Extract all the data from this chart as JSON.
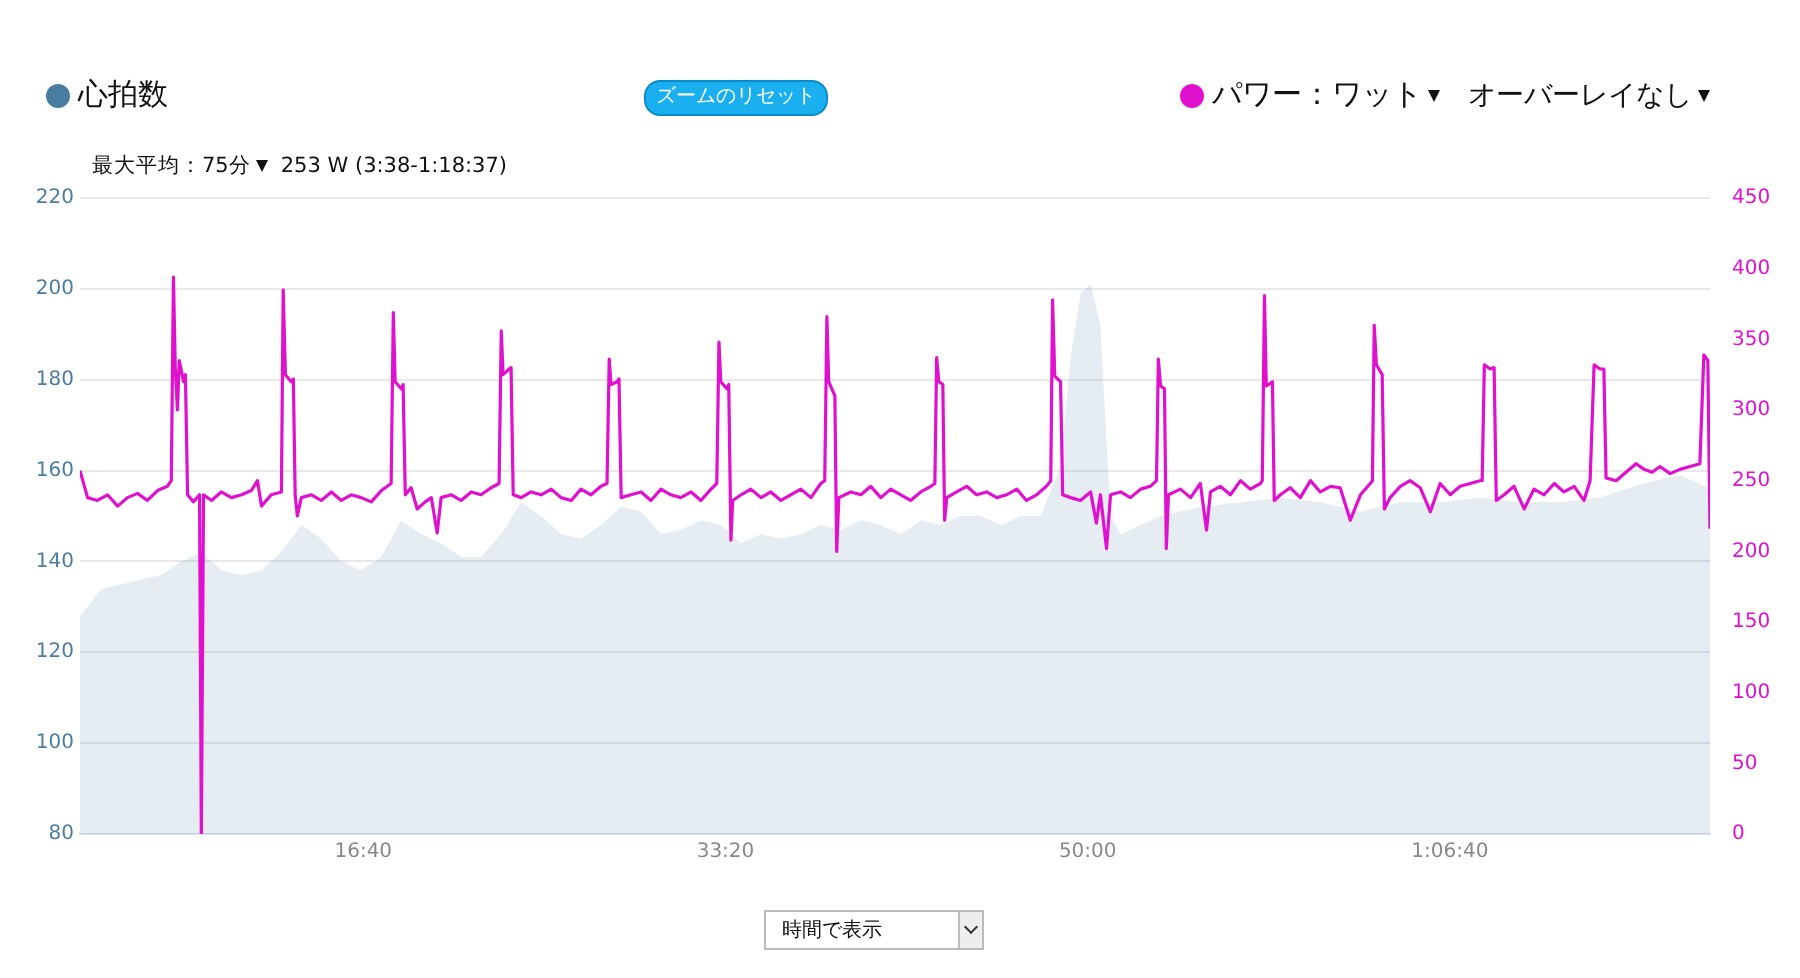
{
  "chart_data": {
    "type": "area",
    "legend": "top",
    "grid": "y",
    "marker": "none",
    "line_style": "solid",
    "annotations": [
      "ズームのリセット",
      "最大平均：75分",
      "253 W (3:38-1:18:37)",
      "オーバーレイなし",
      "時間で表示"
    ],
    "xlim": [
      218,
      4718
    ],
    "xticks": [
      {
        "value": 1000,
        "label": "16:40"
      },
      {
        "value": 2000,
        "label": "33:20"
      },
      {
        "value": 3000,
        "label": "50:00"
      },
      {
        "value": 4000,
        "label": "1:06:40"
      }
    ],
    "ylim": [
      80,
      220
    ],
    "yticks": [
      80,
      100,
      120,
      140,
      160,
      180,
      200,
      220
    ],
    "y2lim": [
      0,
      450
    ],
    "y2ticks": [
      0,
      50,
      100,
      150,
      200,
      250,
      300,
      350,
      400,
      450
    ],
    "series": [
      {
        "name": "心拍数",
        "type": "area",
        "color": "#4a7ba0",
        "x": [
          218,
          277,
          333,
          388,
          443,
          498,
          553,
          608,
          664,
          719,
          774,
          829,
          884,
          939,
          994,
          1050,
          1105,
          1160,
          1215,
          1270,
          1325,
          1381,
          1436,
          1491,
          1546,
          1601,
          1656,
          1712,
          1767,
          1822,
          1877,
          1932,
          1987,
          2043,
          2098,
          2153,
          2208,
          2263,
          2318,
          2374,
          2429,
          2484,
          2539,
          2594,
          2649,
          2704,
          2760,
          2815,
          2870,
          2925,
          2953,
          2980,
          3008,
          3035,
          3063,
          3091,
          3146,
          3201,
          3311,
          3422,
          3532,
          3642,
          3753,
          3863,
          3973,
          4084,
          4194,
          4304,
          4414,
          4525,
          4635,
          4718
        ],
        "values": [
          128,
          134,
          135,
          136,
          137,
          140,
          142,
          138,
          137,
          138,
          142,
          148,
          145,
          140,
          138,
          141,
          149,
          146,
          144,
          141,
          141,
          146,
          153,
          150,
          146,
          145,
          148,
          152,
          151,
          146,
          147,
          149,
          148,
          144,
          146,
          145,
          146,
          148,
          147,
          149,
          148,
          146,
          149,
          148,
          150,
          150,
          148,
          150,
          150,
          161,
          185,
          199,
          201,
          192,
          150,
          146,
          148,
          150,
          152,
          153,
          154,
          153,
          151,
          153,
          153,
          154,
          153,
          153,
          154,
          157,
          159,
          156
        ]
      },
      {
        "name": "パワー：ワット",
        "type": "line",
        "axis": "y2",
        "color": "#e010cf",
        "x": [
          218,
          239,
          266,
          294,
          322,
          349,
          377,
          404,
          432,
          459,
          470,
          476,
          481,
          487,
          492,
          504,
          509,
          515,
          531,
          548,
          553,
          559,
          581,
          608,
          636,
          664,
          691,
          708,
          719,
          746,
          774,
          779,
          785,
          801,
          807,
          812,
          818,
          829,
          857,
          884,
          912,
          939,
          967,
          994,
          1022,
          1050,
          1077,
          1083,
          1088,
          1105,
          1110,
          1116,
          1132,
          1149,
          1171,
          1188,
          1204,
          1215,
          1243,
          1270,
          1298,
          1325,
          1353,
          1375,
          1381,
          1386,
          1403,
          1408,
          1414,
          1436,
          1463,
          1491,
          1519,
          1546,
          1574,
          1601,
          1629,
          1656,
          1673,
          1679,
          1684,
          1701,
          1706,
          1712,
          1739,
          1767,
          1794,
          1822,
          1849,
          1877,
          1905,
          1932,
          1960,
          1976,
          1982,
          1987,
          2004,
          2009,
          2015,
          2020,
          2043,
          2070,
          2098,
          2125,
          2153,
          2180,
          2208,
          2236,
          2263,
          2274,
          2280,
          2285,
          2302,
          2307,
          2313,
          2346,
          2374,
          2401,
          2429,
          2456,
          2484,
          2511,
          2539,
          2567,
          2578,
          2583,
          2589,
          2600,
          2605,
          2611,
          2638,
          2666,
          2693,
          2721,
          2749,
          2776,
          2804,
          2831,
          2859,
          2886,
          2898,
          2903,
          2909,
          2925,
          2931,
          2953,
          2980,
          3008,
          3024,
          3035,
          3052,
          3063,
          3091,
          3118,
          3146,
          3173,
          3190,
          3195,
          3201,
          3212,
          3217,
          3223,
          3256,
          3284,
          3311,
          3328,
          3339,
          3366,
          3394,
          3422,
          3449,
          3477,
          3482,
          3488,
          3493,
          3510,
          3515,
          3532,
          3559,
          3587,
          3615,
          3642,
          3670,
          3697,
          3725,
          3753,
          3780,
          3786,
          3791,
          3797,
          3813,
          3819,
          3835,
          3863,
          3890,
          3918,
          3946,
          3973,
          4001,
          4028,
          4056,
          4083,
          4089,
          4095,
          4111,
          4122,
          4128,
          4150,
          4177,
          4205,
          4232,
          4260,
          4288,
          4315,
          4343,
          4370,
          4387,
          4398,
          4414,
          4425,
          4431,
          4459,
          4486,
          4514,
          4536,
          4558,
          4580,
          4608,
          4635,
          4663,
          4690,
          4701,
          4712,
          4718
        ],
        "values": [
          257,
          238,
          236,
          240,
          232,
          238,
          241,
          236,
          243,
          246,
          250,
          394,
          330,
          300,
          335,
          320,
          325,
          240,
          235,
          240,
          0,
          240,
          236,
          242,
          238,
          240,
          243,
          250,
          232,
          240,
          242,
          385,
          325,
          320,
          322,
          240,
          225,
          238,
          240,
          236,
          242,
          236,
          240,
          238,
          235,
          243,
          248,
          369,
          320,
          315,
          318,
          240,
          245,
          230,
          235,
          238,
          213,
          238,
          240,
          236,
          242,
          240,
          245,
          248,
          356,
          325,
          329,
          330,
          240,
          238,
          242,
          240,
          244,
          238,
          236,
          244,
          240,
          246,
          248,
          336,
          318,
          320,
          322,
          238,
          240,
          242,
          236,
          244,
          240,
          238,
          242,
          236,
          244,
          248,
          348,
          320,
          315,
          318,
          208,
          236,
          240,
          244,
          238,
          242,
          236,
          240,
          244,
          238,
          248,
          250,
          366,
          320,
          310,
          200,
          238,
          242,
          240,
          246,
          238,
          244,
          240,
          236,
          242,
          246,
          248,
          337,
          320,
          318,
          222,
          238,
          242,
          246,
          240,
          242,
          238,
          240,
          244,
          236,
          240,
          246,
          250,
          378,
          324,
          320,
          240,
          238,
          236,
          242,
          220,
          240,
          202,
          240,
          242,
          238,
          244,
          246,
          250,
          336,
          317,
          315,
          202,
          240,
          244,
          238,
          248,
          215,
          242,
          246,
          240,
          250,
          244,
          248,
          250,
          381,
          317,
          320,
          236,
          240,
          245,
          238,
          250,
          242,
          246,
          245,
          222,
          240,
          248,
          250,
          360,
          332,
          325,
          230,
          238,
          246,
          250,
          245,
          228,
          248,
          240,
          246,
          248,
          250,
          250,
          332,
          329,
          330,
          236,
          240,
          246,
          230,
          244,
          240,
          248,
          242,
          246,
          236,
          250,
          332,
          329,
          329,
          252,
          250,
          256,
          262,
          258,
          256,
          260,
          255,
          258,
          260,
          262,
          339,
          335,
          216
        ]
      }
    ]
  }
}
